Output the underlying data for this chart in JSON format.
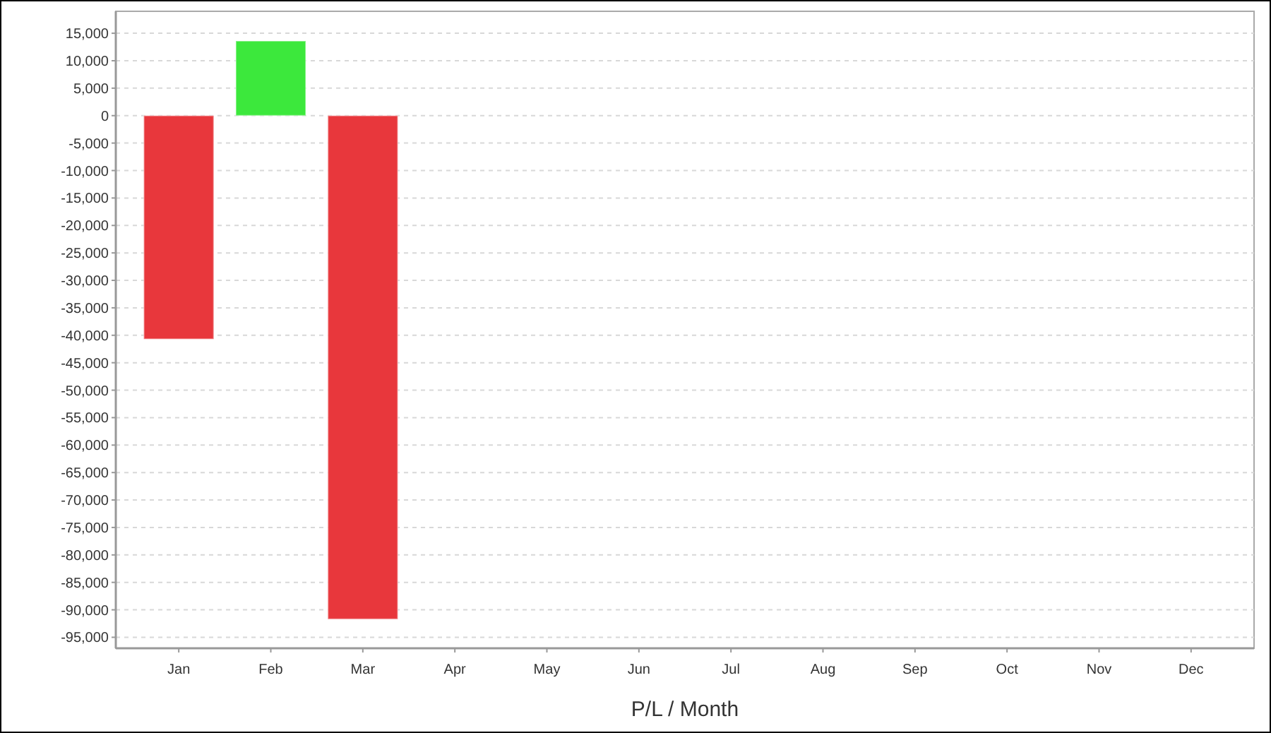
{
  "chart_data": {
    "type": "bar",
    "xlabel": "P/L / Month",
    "categories": [
      "Jan",
      "Feb",
      "Mar",
      "Apr",
      "May",
      "Jun",
      "Jul",
      "Aug",
      "Sep",
      "Oct",
      "Nov",
      "Dec"
    ],
    "values": [
      -40700,
      13600,
      -91700,
      null,
      null,
      null,
      null,
      null,
      null,
      null,
      null,
      null
    ],
    "colors": [
      "#e8373c",
      "#3ce83c",
      "#e8373c",
      null,
      null,
      null,
      null,
      null,
      null,
      null,
      null,
      null
    ],
    "ylim": [
      -97000,
      19000
    ],
    "yticks": [
      {
        "value": 15000,
        "label": "15,000"
      },
      {
        "value": 10000,
        "label": "10,000"
      },
      {
        "value": 5000,
        "label": "5,000"
      },
      0,
      {
        "value": -5000,
        "label": "-5,000"
      },
      {
        "value": -10000,
        "label": "-10,000"
      },
      {
        "value": -15000,
        "label": "-15,000"
      },
      {
        "value": -20000,
        "label": "-20,000"
      },
      {
        "value": -25000,
        "label": "-25,000"
      },
      {
        "value": -30000,
        "label": "-30,000"
      },
      {
        "value": -35000,
        "label": "-35,000"
      },
      {
        "value": -40000,
        "label": "-40,000"
      },
      {
        "value": -45000,
        "label": "-45,000"
      },
      {
        "value": -50000,
        "label": "-50,000"
      },
      {
        "value": -55000,
        "label": "-55,000"
      },
      {
        "value": -60000,
        "label": "-60,000"
      },
      {
        "value": -65000,
        "label": "-65,000"
      },
      {
        "value": -70000,
        "label": "-70,000"
      },
      {
        "value": -75000,
        "label": "-75,000"
      },
      {
        "value": -80000,
        "label": "-80,000"
      },
      {
        "value": -85000,
        "label": "-85,000"
      },
      {
        "value": -90000,
        "label": "-90,000"
      },
      {
        "value": -95000,
        "label": "-95,000"
      }
    ],
    "grid": "y"
  }
}
